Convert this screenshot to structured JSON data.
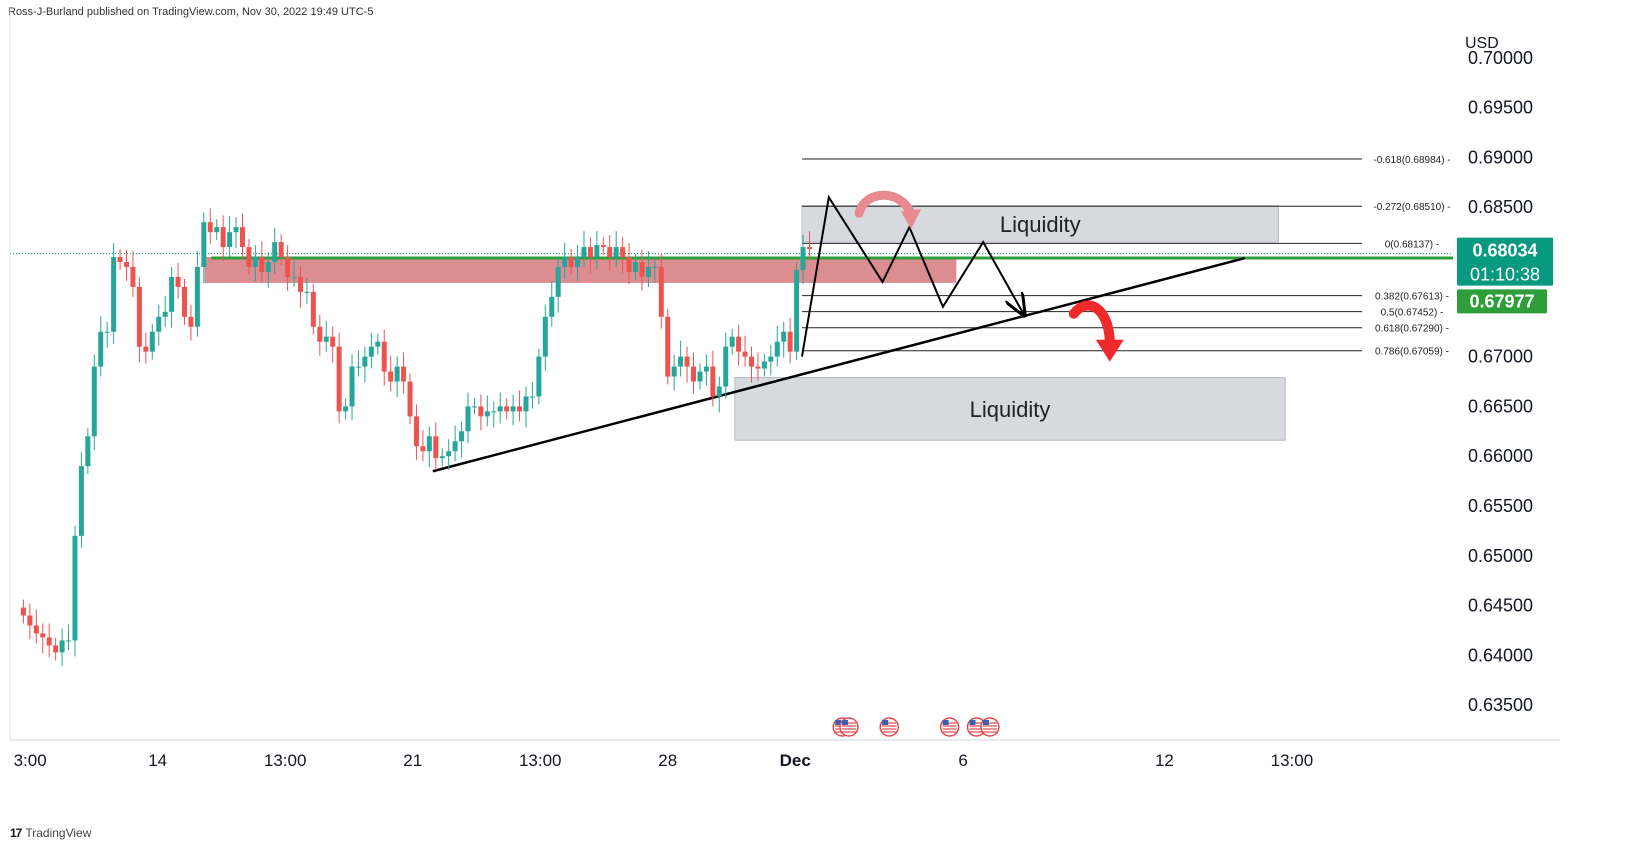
{
  "header": {
    "attribution": "Ross-J-Burland published on TradingView.com, Nov 30, 2022 19:49 UTC-5"
  },
  "footer": {
    "brand": "TradingView"
  },
  "colors": {
    "up": "#26a69a",
    "down": "#ef5350",
    "zone": "#cfd2d8",
    "resistance": "#d9878b",
    "trend": "#000000",
    "price_badge": "#089981",
    "green_line": "#2e9e3a"
  },
  "chart_data": {
    "type": "candlestick",
    "currency": "USD",
    "ylim": [
      0.6315,
      0.703
    ],
    "y_ticks": [
      0.635,
      0.64,
      0.645,
      0.65,
      0.655,
      0.66,
      0.665,
      0.67,
      0.675,
      0.68,
      0.685,
      0.69,
      0.695,
      0.7
    ],
    "y_tick_labels": [
      "0.63500",
      "0.64000",
      "0.64500",
      "0.65000",
      "0.65500",
      "0.66000",
      "0.66500",
      "0.67000",
      "0.67500",
      "0.68000",
      "0.68500",
      "0.69000",
      "0.69500",
      "0.70000"
    ],
    "x_domain": [
      0,
      215
    ],
    "x_ticks": [
      {
        "label": "3:00",
        "x": 3
      },
      {
        "label": "14",
        "x": 22
      },
      {
        "label": "13:00",
        "x": 41
      },
      {
        "label": "21",
        "x": 60
      },
      {
        "label": "13:00",
        "x": 79
      },
      {
        "label": "28",
        "x": 98
      },
      {
        "label": "Dec",
        "x": 117,
        "bold": true
      },
      {
        "label": "6",
        "x": 142
      },
      {
        "label": "12",
        "x": 172
      },
      {
        "label": "13:00",
        "x": 191
      }
    ],
    "closes": [
      0.644,
      0.643,
      0.6422,
      0.6418,
      0.641,
      0.6403,
      0.6415,
      0.6415,
      0.652,
      0.659,
      0.662,
      0.669,
      0.6725,
      0.6725,
      0.68,
      0.6795,
      0.679,
      0.677,
      0.671,
      0.6705,
      0.6725,
      0.674,
      0.6745,
      0.678,
      0.677,
      0.674,
      0.673,
      0.679,
      0.6835,
      0.6825,
      0.683,
      0.681,
      0.6825,
      0.683,
      0.681,
      0.679,
      0.68,
      0.6785,
      0.6795,
      0.6815,
      0.68,
      0.678,
      0.678,
      0.6765,
      0.6765,
      0.673,
      0.6715,
      0.672,
      0.671,
      0.6645,
      0.665,
      0.669,
      0.669,
      0.67,
      0.671,
      0.6715,
      0.6685,
      0.6675,
      0.669,
      0.6675,
      0.664,
      0.661,
      0.6605,
      0.662,
      0.6598,
      0.66,
      0.6605,
      0.6615,
      0.6625,
      0.665,
      0.665,
      0.664,
      0.6645,
      0.6645,
      0.665,
      0.6645,
      0.665,
      0.6645,
      0.666,
      0.666,
      0.67,
      0.674,
      0.676,
      0.679,
      0.68,
      0.679,
      0.68,
      0.681,
      0.68,
      0.6812,
      0.681,
      0.68,
      0.681,
      0.68,
      0.6785,
      0.6795,
      0.678,
      0.679,
      0.679,
      0.674,
      0.668,
      0.669,
      0.67,
      0.669,
      0.6675,
      0.6685,
      0.669,
      0.666,
      0.667,
      0.671,
      0.672,
      0.6705,
      0.67,
      0.669,
      0.6688,
      0.6695,
      0.67,
      0.6715,
      0.6725,
      0.6705,
      0.6787,
      0.681,
      0.6808
    ],
    "series_meta": {
      "start_x": 2,
      "step": 0.96
    },
    "price_labels": [
      {
        "text": "0.68034",
        "value": 0.68034,
        "color": "#089981",
        "primary": true
      },
      {
        "text": "01:10:38",
        "value": 0.68034,
        "sub": true,
        "color": "#089981"
      },
      {
        "text": "0.67977",
        "value": 0.67977,
        "color": "#2e9e3a"
      }
    ],
    "fib_levels": [
      {
        "label": "-0.618(0.68984)",
        "value": 0.68984
      },
      {
        "label": "-0.272(0.68510)",
        "value": 0.6851
      },
      {
        "label": "0(0.68137)",
        "value": 0.68137
      },
      {
        "label": "0.382(0.67613)",
        "value": 0.67613
      },
      {
        "label": "0.5(0.67452)",
        "value": 0.67452
      },
      {
        "label": "0.618(0.67290)",
        "value": 0.6729
      },
      {
        "label": "0.786(0.67059)",
        "value": 0.67059
      }
    ],
    "fib_x_range": [
      118,
      196
    ],
    "zones": [
      {
        "label": "Liquidity",
        "x0": 118,
        "x1": 189,
        "y0": 0.68151,
        "y1": 0.68515,
        "type": "liquidity"
      },
      {
        "label": "Liquidity",
        "x0": 108,
        "x1": 190,
        "y0": 0.6616,
        "y1": 0.6679,
        "type": "liquidity"
      },
      {
        "label": "",
        "x0": 29,
        "x1": 141,
        "y0": 0.6774,
        "y1": 0.68,
        "type": "resistance"
      }
    ],
    "green_line": {
      "value": 0.6799,
      "x0": 30,
      "x1": 215
    },
    "dotted_line": {
      "value": 0.68034,
      "x0": 0,
      "x1": 215
    },
    "trendlines": [
      {
        "x0": 63,
        "y0": 0.65849,
        "x1": 184,
        "y1": 0.6799
      }
    ],
    "projection_path": [
      {
        "x": 118,
        "y": 0.67
      },
      {
        "x": 122,
        "y": 0.686
      },
      {
        "x": 130,
        "y": 0.6775
      },
      {
        "x": 134,
        "y": 0.683
      },
      {
        "x": 139,
        "y": 0.675
      },
      {
        "x": 145,
        "y": 0.6815
      },
      {
        "x": 151,
        "y": 0.6743
      }
    ],
    "event_icons": [
      {
        "x": 124
      },
      {
        "x": 125
      },
      {
        "x": 131
      },
      {
        "x": 140
      },
      {
        "x": 144
      },
      {
        "x": 146
      }
    ]
  }
}
